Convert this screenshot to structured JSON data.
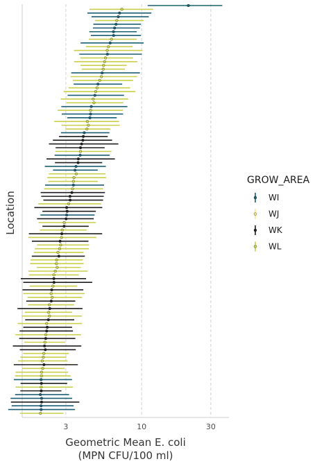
{
  "chart_data": {
    "type": "dot-errorbar",
    "xlabel_line1": "Geometric Mean E. coli",
    "xlabel_line2": "(MPN CFU/100 ml)",
    "ylabel": "Location",
    "x_scale": "log10",
    "xlim": [
      1.5,
      40
    ],
    "x_ticks": [
      3,
      10,
      30
    ],
    "x_tick_labels": [
      "3",
      "10",
      "30"
    ],
    "grid": "vertical dashed",
    "legend": {
      "title": "GROW_AREA",
      "placement": "right",
      "entries": [
        {
          "label": "WI",
          "color": "#1b5e73"
        },
        {
          "label": "WJ",
          "color": "#f1e48a"
        },
        {
          "label": "WK",
          "color": "#1f1f1f"
        },
        {
          "label": "WL",
          "color": "#c9cf4a"
        }
      ]
    },
    "n_locations": 110,
    "group_sequence": [
      "WI",
      "WL",
      "WI",
      "WI",
      "WL",
      "WI",
      "WI",
      "WI",
      "WI",
      "WL",
      "WI",
      "WL",
      "WL",
      "WI",
      "WL",
      "WL",
      "WL",
      "WL",
      "WI",
      "WL",
      "WL",
      "WI",
      "WL",
      "WL",
      "WI",
      "WL",
      "WL",
      "WI",
      "WL",
      "WI",
      "WI",
      "WL",
      "WL",
      "WL",
      "WI",
      "WK",
      "WK",
      "WK",
      "WK",
      "WL",
      "WI",
      "WK",
      "WK",
      "WI",
      "WI",
      "WL",
      "WL",
      "WL",
      "WI",
      "WL",
      "WK",
      "WK",
      "WK",
      "WL",
      "WK",
      "WK",
      "WI",
      "WK",
      "WL",
      "WK",
      "WL",
      "WK",
      "WL",
      "WK",
      "WL",
      "WL",
      "WL",
      "WK",
      "WL",
      "WL",
      "WL",
      "WL",
      "WL",
      "WK",
      "WK",
      "WL",
      "WK",
      "WL",
      "WL",
      "WK",
      "WL",
      "WK",
      "WL",
      "WL",
      "WK",
      "WL",
      "WK",
      "WK",
      "WL",
      "WK",
      "WL",
      "WK",
      "WK",
      "WL",
      "WL",
      "WL",
      "WK",
      "WL",
      "WL",
      "WL",
      "WI",
      "WK",
      "WL",
      "WK",
      "WI",
      "WI",
      "WK",
      "WI",
      "WI",
      "WL"
    ]
  }
}
